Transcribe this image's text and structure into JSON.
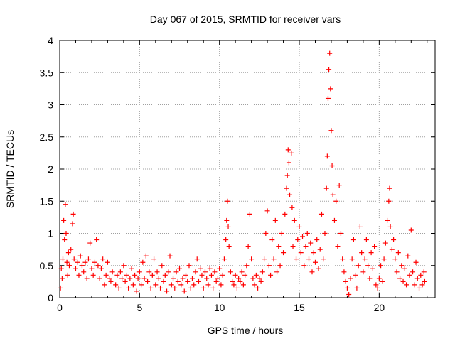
{
  "chart_data": {
    "type": "scatter",
    "title": "Day 067 of 2015, SRMTID for receiver vars",
    "xlabel": "GPS time / hours",
    "ylabel": "SRMTID / TECUs",
    "xlim": [
      0,
      23.5
    ],
    "ylim": [
      0,
      4
    ],
    "xticks": [
      0,
      5,
      10,
      15,
      20
    ],
    "xtick_labels": [
      "0",
      "5",
      "10",
      "15",
      "20"
    ],
    "yticks": [
      0,
      0.5,
      1,
      1.5,
      2,
      2.5,
      3,
      3.5,
      4
    ],
    "ytick_labels": [
      "0",
      "0.5",
      "1",
      "1.5",
      "2",
      "2.5",
      "3",
      "3.5",
      "4"
    ],
    "grid": true,
    "marker": "+",
    "color": "#ff0000",
    "series": [
      {
        "name": "SRMTID",
        "points": [
          [
            0.05,
            0.15
          ],
          [
            0.1,
            0.45
          ],
          [
            0.15,
            0.3
          ],
          [
            0.2,
            0.6
          ],
          [
            0.25,
            1.2
          ],
          [
            0.3,
            0.9
          ],
          [
            0.35,
            1.45
          ],
          [
            0.4,
            1.0
          ],
          [
            0.45,
            0.55
          ],
          [
            0.5,
            0.35
          ],
          [
            0.55,
            0.7
          ],
          [
            0.6,
            0.5
          ],
          [
            0.7,
            0.75
          ],
          [
            0.8,
            1.15
          ],
          [
            0.85,
            1.3
          ],
          [
            0.9,
            0.6
          ],
          [
            1.0,
            0.45
          ],
          [
            1.1,
            0.55
          ],
          [
            1.2,
            0.35
          ],
          [
            1.3,
            0.65
          ],
          [
            1.4,
            0.5
          ],
          [
            1.5,
            0.4
          ],
          [
            1.6,
            0.55
          ],
          [
            1.7,
            0.3
          ],
          [
            1.8,
            0.6
          ],
          [
            1.9,
            0.85
          ],
          [
            2.0,
            0.45
          ],
          [
            2.1,
            0.35
          ],
          [
            2.2,
            0.55
          ],
          [
            2.3,
            0.9
          ],
          [
            2.4,
            0.5
          ],
          [
            2.5,
            0.3
          ],
          [
            2.6,
            0.45
          ],
          [
            2.7,
            0.6
          ],
          [
            2.8,
            0.2
          ],
          [
            2.9,
            0.35
          ],
          [
            3.0,
            0.55
          ],
          [
            3.1,
            0.3
          ],
          [
            3.2,
            0.25
          ],
          [
            3.3,
            0.4
          ],
          [
            3.5,
            0.2
          ],
          [
            3.6,
            0.35
          ],
          [
            3.7,
            0.15
          ],
          [
            3.8,
            0.4
          ],
          [
            3.9,
            0.3
          ],
          [
            4.0,
            0.5
          ],
          [
            4.1,
            0.25
          ],
          [
            4.2,
            0.35
          ],
          [
            4.3,
            0.15
          ],
          [
            4.4,
            0.3
          ],
          [
            4.5,
            0.45
          ],
          [
            4.6,
            0.2
          ],
          [
            4.7,
            0.35
          ],
          [
            4.8,
            0.1
          ],
          [
            4.9,
            0.3
          ],
          [
            5.0,
            0.4
          ],
          [
            5.1,
            0.2
          ],
          [
            5.2,
            0.55
          ],
          [
            5.3,
            0.3
          ],
          [
            5.4,
            0.65
          ],
          [
            5.5,
            0.25
          ],
          [
            5.6,
            0.4
          ],
          [
            5.7,
            0.15
          ],
          [
            5.8,
            0.35
          ],
          [
            5.9,
            0.6
          ],
          [
            6.0,
            0.2
          ],
          [
            6.1,
            0.4
          ],
          [
            6.2,
            0.3
          ],
          [
            6.3,
            0.15
          ],
          [
            6.4,
            0.5
          ],
          [
            6.5,
            0.25
          ],
          [
            6.6,
            0.35
          ],
          [
            6.7,
            0.1
          ],
          [
            6.8,
            0.4
          ],
          [
            6.9,
            0.65
          ],
          [
            7.0,
            0.2
          ],
          [
            7.1,
            0.3
          ],
          [
            7.2,
            0.15
          ],
          [
            7.3,
            0.4
          ],
          [
            7.4,
            0.25
          ],
          [
            7.5,
            0.45
          ],
          [
            7.6,
            0.2
          ],
          [
            7.7,
            0.3
          ],
          [
            7.8,
            0.1
          ],
          [
            7.9,
            0.35
          ],
          [
            8.0,
            0.25
          ],
          [
            8.1,
            0.5
          ],
          [
            8.2,
            0.15
          ],
          [
            8.3,
            0.3
          ],
          [
            8.4,
            0.2
          ],
          [
            8.5,
            0.4
          ],
          [
            8.6,
            0.6
          ],
          [
            8.7,
            0.25
          ],
          [
            8.8,
            0.45
          ],
          [
            8.9,
            0.35
          ],
          [
            9.0,
            0.15
          ],
          [
            9.1,
            0.4
          ],
          [
            9.2,
            0.3
          ],
          [
            9.3,
            0.2
          ],
          [
            9.4,
            0.45
          ],
          [
            9.5,
            0.35
          ],
          [
            9.6,
            0.15
          ],
          [
            9.7,
            0.4
          ],
          [
            9.8,
            0.25
          ],
          [
            9.9,
            0.3
          ],
          [
            10.0,
            0.45
          ],
          [
            10.1,
            0.2
          ],
          [
            10.2,
            0.35
          ],
          [
            10.3,
            0.6
          ],
          [
            10.4,
            0.9
          ],
          [
            10.45,
            1.2
          ],
          [
            10.5,
            1.5
          ],
          [
            10.55,
            1.1
          ],
          [
            10.6,
            0.8
          ],
          [
            10.7,
            0.4
          ],
          [
            10.8,
            0.25
          ],
          [
            10.9,
            0.2
          ],
          [
            11.0,
            0.35
          ],
          [
            11.1,
            0.15
          ],
          [
            11.2,
            0.3
          ],
          [
            11.3,
            0.25
          ],
          [
            11.4,
            0.4
          ],
          [
            11.5,
            0.2
          ],
          [
            11.6,
            0.35
          ],
          [
            11.7,
            0.5
          ],
          [
            11.8,
            0.8
          ],
          [
            11.9,
            1.3
          ],
          [
            12.0,
            0.6
          ],
          [
            12.1,
            0.3
          ],
          [
            12.2,
            0.2
          ],
          [
            12.3,
            0.35
          ],
          [
            12.4,
            0.15
          ],
          [
            12.5,
            0.3
          ],
          [
            12.6,
            0.25
          ],
          [
            12.7,
            0.4
          ],
          [
            12.8,
            0.6
          ],
          [
            12.9,
            1.0
          ],
          [
            13.0,
            1.35
          ],
          [
            13.1,
            0.5
          ],
          [
            13.2,
            0.35
          ],
          [
            13.3,
            0.9
          ],
          [
            13.4,
            0.6
          ],
          [
            13.5,
            1.2
          ],
          [
            13.6,
            0.4
          ],
          [
            13.7,
            0.8
          ],
          [
            13.8,
            0.5
          ],
          [
            13.9,
            1.0
          ],
          [
            14.0,
            0.7
          ],
          [
            14.1,
            1.3
          ],
          [
            14.2,
            1.7
          ],
          [
            14.25,
            1.9
          ],
          [
            14.3,
            2.3
          ],
          [
            14.35,
            2.1
          ],
          [
            14.4,
            1.6
          ],
          [
            14.5,
            2.25
          ],
          [
            14.55,
            1.4
          ],
          [
            14.6,
            0.8
          ],
          [
            14.7,
            1.2
          ],
          [
            14.8,
            0.6
          ],
          [
            14.9,
            0.9
          ],
          [
            15.0,
            1.1
          ],
          [
            15.1,
            0.7
          ],
          [
            15.2,
            0.95
          ],
          [
            15.3,
            0.5
          ],
          [
            15.4,
            0.8
          ],
          [
            15.5,
            1.0
          ],
          [
            15.6,
            0.6
          ],
          [
            15.7,
            0.85
          ],
          [
            15.8,
            0.4
          ],
          [
            15.9,
            0.7
          ],
          [
            16.0,
            0.55
          ],
          [
            16.1,
            0.9
          ],
          [
            16.2,
            0.45
          ],
          [
            16.3,
            0.75
          ],
          [
            16.4,
            1.3
          ],
          [
            16.5,
            0.6
          ],
          [
            16.6,
            1.0
          ],
          [
            16.7,
            1.7
          ],
          [
            16.75,
            2.2
          ],
          [
            16.8,
            3.1
          ],
          [
            16.85,
            3.55
          ],
          [
            16.9,
            3.8
          ],
          [
            16.95,
            3.25
          ],
          [
            17.0,
            2.6
          ],
          [
            17.05,
            2.05
          ],
          [
            17.1,
            1.6
          ],
          [
            17.2,
            1.2
          ],
          [
            17.3,
            1.5
          ],
          [
            17.4,
            0.8
          ],
          [
            17.5,
            1.75
          ],
          [
            17.6,
            1.0
          ],
          [
            17.7,
            0.6
          ],
          [
            17.8,
            0.4
          ],
          [
            17.9,
            0.25
          ],
          [
            18.0,
            0.15
          ],
          [
            18.1,
            0.05
          ],
          [
            18.2,
            0.3
          ],
          [
            18.3,
            0.6
          ],
          [
            18.4,
            0.9
          ],
          [
            18.5,
            0.35
          ],
          [
            18.6,
            0.15
          ],
          [
            18.7,
            0.5
          ],
          [
            18.8,
            1.1
          ],
          [
            18.9,
            0.7
          ],
          [
            19.0,
            0.4
          ],
          [
            19.1,
            0.6
          ],
          [
            19.2,
            0.9
          ],
          [
            19.3,
            0.5
          ],
          [
            19.4,
            0.3
          ],
          [
            19.5,
            0.7
          ],
          [
            19.6,
            0.45
          ],
          [
            19.7,
            0.8
          ],
          [
            19.8,
            0.2
          ],
          [
            19.9,
            0.15
          ],
          [
            20.0,
            0.3
          ],
          [
            20.1,
            0.5
          ],
          [
            20.2,
            0.25
          ],
          [
            20.3,
            0.6
          ],
          [
            20.4,
            0.85
          ],
          [
            20.5,
            1.2
          ],
          [
            20.6,
            1.5
          ],
          [
            20.65,
            1.7
          ],
          [
            20.7,
            1.1
          ],
          [
            20.8,
            0.75
          ],
          [
            20.9,
            0.9
          ],
          [
            21.0,
            0.6
          ],
          [
            21.1,
            0.4
          ],
          [
            21.2,
            0.7
          ],
          [
            21.3,
            0.3
          ],
          [
            21.4,
            0.5
          ],
          [
            21.5,
            0.25
          ],
          [
            21.6,
            0.45
          ],
          [
            21.7,
            0.2
          ],
          [
            21.8,
            0.65
          ],
          [
            21.9,
            0.35
          ],
          [
            22.0,
            1.05
          ],
          [
            22.1,
            0.4
          ],
          [
            22.2,
            0.2
          ],
          [
            22.3,
            0.55
          ],
          [
            22.4,
            0.3
          ],
          [
            22.5,
            0.15
          ],
          [
            22.6,
            0.35
          ],
          [
            22.7,
            0.2
          ],
          [
            22.8,
            0.4
          ],
          [
            22.85,
            0.25
          ]
        ]
      }
    ]
  }
}
